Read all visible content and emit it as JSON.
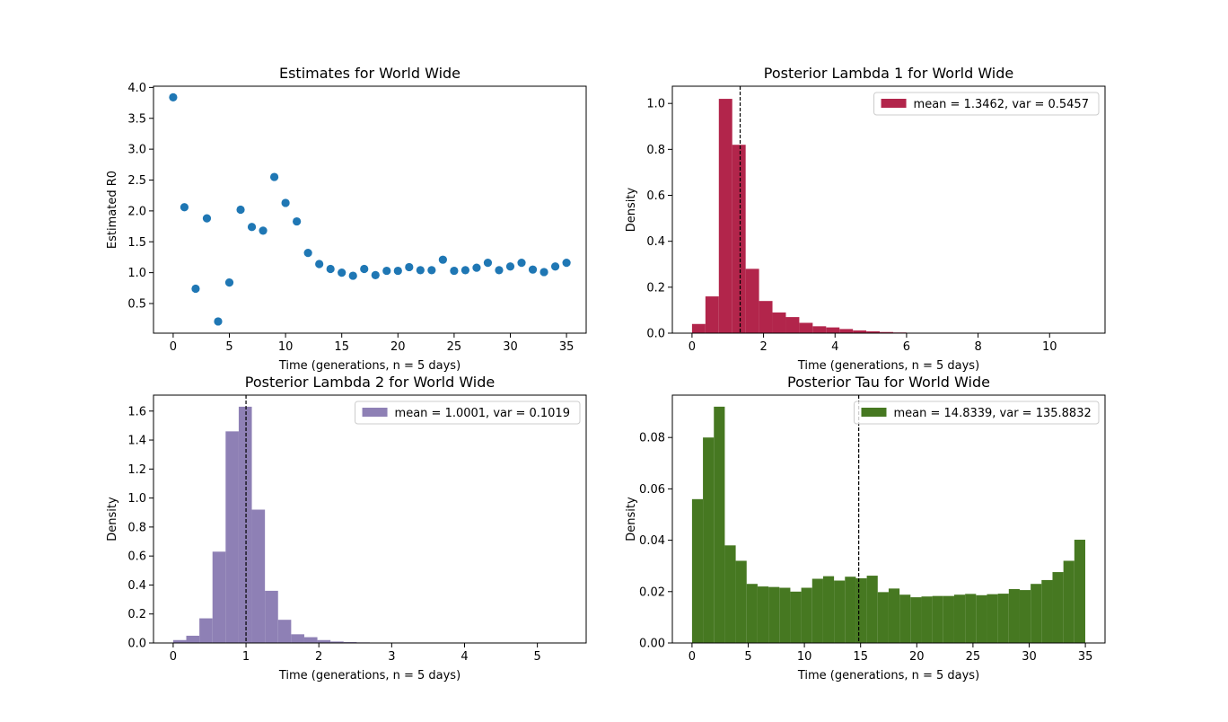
{
  "chart_data": [
    {
      "type": "scatter",
      "title": "Estimates for World Wide",
      "xlabel": "Time (generations, n = 5 days)",
      "ylabel": "Estimated R0",
      "xlim": [
        -1.75,
        36.75
      ],
      "ylim": [
        0.02,
        4.02
      ],
      "xticks": [
        0,
        5,
        10,
        15,
        20,
        25,
        30,
        35
      ],
      "yticks": [
        0.5,
        1.0,
        1.5,
        2.0,
        2.5,
        3.0,
        3.5,
        4.0
      ],
      "color": "#1f77b4",
      "x": [
        0,
        1,
        2,
        3,
        4,
        5,
        6,
        7,
        8,
        9,
        10,
        11,
        12,
        13,
        14,
        15,
        16,
        17,
        18,
        19,
        20,
        21,
        22,
        23,
        24,
        25,
        26,
        27,
        28,
        29,
        30,
        31,
        32,
        33,
        34,
        35
      ],
      "y": [
        3.84,
        2.06,
        0.74,
        1.88,
        0.21,
        0.84,
        2.02,
        1.74,
        1.68,
        2.55,
        2.13,
        1.83,
        1.32,
        1.14,
        1.06,
        1.0,
        0.95,
        1.06,
        0.96,
        1.03,
        1.03,
        1.09,
        1.04,
        1.04,
        1.21,
        1.03,
        1.04,
        1.08,
        1.16,
        1.04,
        1.1,
        1.16,
        1.05,
        1.01,
        1.1,
        1.16
      ]
    },
    {
      "type": "bar",
      "title": "Posterior Lambda 1 for World Wide",
      "xlabel": "Time (generations, n = 5 days)",
      "ylabel": "Density",
      "xlim": [
        -0.55,
        11.55
      ],
      "ylim": [
        0,
        1.075
      ],
      "xticks": [
        0,
        2,
        4,
        6,
        8,
        10
      ],
      "yticks": [
        0.0,
        0.2,
        0.4,
        0.6,
        0.8,
        1.0
      ],
      "color": "#b2254b",
      "bin_start": 0.0,
      "bin_width": 0.375,
      "values": [
        0.04,
        0.16,
        1.02,
        0.82,
        0.28,
        0.14,
        0.09,
        0.07,
        0.045,
        0.03,
        0.025,
        0.018,
        0.012,
        0.008,
        0.005,
        0.003,
        0.002,
        0.001,
        0.001,
        0.001,
        0.0,
        0.0,
        0.0,
        0.0,
        0.0,
        0.0,
        0.0,
        0.0,
        0.0
      ],
      "mean_line": 1.3462,
      "legend": "mean = 1.3462, var = 0.5457",
      "legend_position": "upper right"
    },
    {
      "type": "bar",
      "title": "Posterior Lambda 2 for World Wide",
      "xlabel": "Time (generations, n = 5 days)",
      "ylabel": "Density",
      "xlim": [
        -0.27,
        5.67
      ],
      "ylim": [
        0,
        1.71
      ],
      "xticks": [
        0,
        1,
        2,
        3,
        4,
        5
      ],
      "yticks": [
        0.0,
        0.2,
        0.4,
        0.6,
        0.8,
        1.0,
        1.2,
        1.4,
        1.6
      ],
      "color": "#8e80b5",
      "bin_start": 0.0,
      "bin_width": 0.18,
      "values": [
        0.02,
        0.05,
        0.17,
        0.63,
        1.46,
        1.63,
        0.92,
        0.36,
        0.16,
        0.06,
        0.04,
        0.02,
        0.01,
        0.006,
        0.004,
        0.003,
        0.002,
        0.002,
        0.001,
        0.001,
        0.001,
        0.001,
        0.001,
        0.001,
        0.001,
        0.001,
        0.001,
        0.001,
        0.001,
        0.001
      ],
      "mean_line": 1.0001,
      "legend": "mean = 1.0001, var = 0.1019",
      "legend_position": "upper right"
    },
    {
      "type": "bar",
      "title": "Posterior Tau for World Wide",
      "xlabel": "Time (generations, n = 5 days)",
      "ylabel": "Density",
      "xlim": [
        -1.75,
        36.75
      ],
      "ylim": [
        0,
        0.0965
      ],
      "xticks": [
        0,
        5,
        10,
        15,
        20,
        25,
        30,
        35
      ],
      "yticks": [
        0.0,
        0.02,
        0.04,
        0.06,
        0.08
      ],
      "color": "#467821",
      "bin_start": 0.0,
      "bin_width": 0.972,
      "values": [
        0.056,
        0.08,
        0.092,
        0.038,
        0.032,
        0.023,
        0.022,
        0.0218,
        0.0215,
        0.02,
        0.0215,
        0.025,
        0.026,
        0.0243,
        0.0258,
        0.0252,
        0.0262,
        0.0198,
        0.0212,
        0.0188,
        0.0178,
        0.0181,
        0.0183,
        0.0183,
        0.0188,
        0.0191,
        0.0186,
        0.019,
        0.0192,
        0.021,
        0.0206,
        0.023,
        0.0245,
        0.0276,
        0.032,
        0.0402
      ],
      "mean_line": 14.8339,
      "legend": "mean = 14.8339, var = 135.8832",
      "legend_position": "upper right"
    }
  ]
}
